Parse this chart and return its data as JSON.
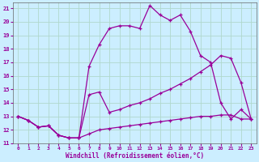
{
  "xlabel": "Windchill (Refroidissement éolien,°C)",
  "background_color": "#cceeff",
  "grid_color": "#b0d8cc",
  "line_color": "#990099",
  "xlim": [
    -0.5,
    23.5
  ],
  "ylim": [
    11,
    21.4
  ],
  "xticks": [
    0,
    1,
    2,
    3,
    4,
    5,
    6,
    7,
    8,
    9,
    10,
    11,
    12,
    13,
    14,
    15,
    16,
    17,
    18,
    19,
    20,
    21,
    22,
    23
  ],
  "yticks": [
    11,
    12,
    13,
    14,
    15,
    16,
    17,
    18,
    19,
    20,
    21
  ],
  "series1_x": [
    0,
    1,
    2,
    3,
    4,
    5,
    6,
    7,
    8,
    9,
    10,
    11,
    12,
    13,
    14,
    15,
    16,
    17,
    18,
    19,
    20,
    21,
    22,
    23
  ],
  "series1_y": [
    13.0,
    12.7,
    12.2,
    12.3,
    11.6,
    11.4,
    11.4,
    16.7,
    18.3,
    19.5,
    19.7,
    19.7,
    19.5,
    21.2,
    20.5,
    20.1,
    20.5,
    19.3,
    17.5,
    17.0,
    14.0,
    12.8,
    13.5,
    12.8
  ],
  "series2_x": [
    0,
    1,
    2,
    3,
    4,
    5,
    6,
    7,
    8,
    9,
    10,
    11,
    12,
    13,
    14,
    15,
    16,
    17,
    18,
    19,
    20,
    21,
    22,
    23
  ],
  "series2_y": [
    13.0,
    12.7,
    12.2,
    12.3,
    11.6,
    11.4,
    11.4,
    14.6,
    14.8,
    13.3,
    13.5,
    13.8,
    14.0,
    14.3,
    14.7,
    15.0,
    15.4,
    15.8,
    16.3,
    16.8,
    17.5,
    17.3,
    15.5,
    12.8
  ],
  "series3_x": [
    0,
    1,
    2,
    3,
    4,
    5,
    6,
    7,
    8,
    9,
    10,
    11,
    12,
    13,
    14,
    15,
    16,
    17,
    18,
    19,
    20,
    21,
    22,
    23
  ],
  "series3_y": [
    13.0,
    12.7,
    12.2,
    12.3,
    11.6,
    11.4,
    11.4,
    11.7,
    12.0,
    12.1,
    12.2,
    12.3,
    12.4,
    12.5,
    12.6,
    12.7,
    12.8,
    12.9,
    13.0,
    13.0,
    13.1,
    13.1,
    12.8,
    12.8
  ]
}
